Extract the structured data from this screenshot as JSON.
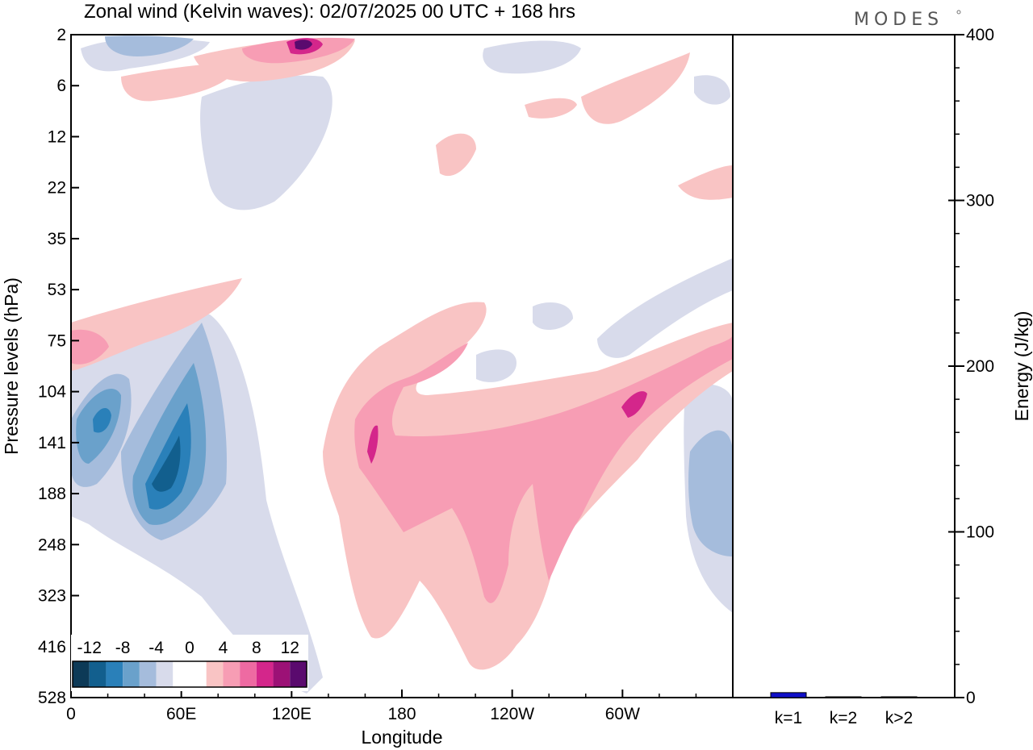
{
  "title": "Zonal wind (Kelvin waves):  02/07/2025  00 UTC  + 168 hrs",
  "brand": "MODES",
  "chart_data": [
    {
      "type": "heatmap",
      "title": "Zonal wind (Kelvin waves):  02/07/2025  00 UTC  + 168 hrs",
      "xlabel": "Longitude",
      "ylabel": "Pressure levels (hPa)",
      "x_tick_labels": [
        "0",
        "60E",
        "120E",
        "180",
        "120W",
        "60W"
      ],
      "x_tick_degrees": [
        0,
        60,
        120,
        180,
        240,
        300
      ],
      "xlim": [
        0,
        360
      ],
      "y_tick_labels": [
        "2",
        "6",
        "12",
        "22",
        "35",
        "53",
        "75",
        "104",
        "141",
        "188",
        "248",
        "323",
        "416",
        "528"
      ],
      "y_scale": "model levels (non-uniform)",
      "colorbar": {
        "labels": [
          "-12",
          "-8",
          "-4",
          "0",
          "4",
          "8",
          "12"
        ],
        "colors": [
          "#0d3a57",
          "#125f8e",
          "#2a80b9",
          "#6aa1cb",
          "#a5bcdc",
          "#d8dbeb",
          "#ffffff",
          "#ffffff",
          "#f9c4c4",
          "#f79db4",
          "#ee6aa2",
          "#d4268b",
          "#9c1176",
          "#5a0a6e"
        ]
      },
      "regions": [
        {
          "label": "easterly (negative) core",
          "value": -12,
          "lon": [
            30,
            55
          ],
          "level": "141-188"
        },
        {
          "label": "easterly (negative) core",
          "value": -10,
          "lon": [
            5,
            25
          ],
          "level": "104-141"
        },
        {
          "label": "westerly (positive) core",
          "value": 8,
          "lon": [
            165,
            170
          ],
          "level": "141"
        },
        {
          "label": "westerly (positive) core",
          "value": 8,
          "lon": [
            300,
            310
          ],
          "level": "104-141"
        },
        {
          "label": "westerly (positive) upper",
          "value": 12,
          "lon": [
            115,
            130
          ],
          "level": "2-6"
        }
      ]
    },
    {
      "type": "bar",
      "categories": [
        "k=1",
        "k=2",
        "k>2"
      ],
      "values": [
        3,
        0.3,
        0.5
      ],
      "ylabel": "Energy (J/kg)",
      "ylim": [
        0,
        400
      ],
      "y_ticks": [
        0,
        100,
        200,
        300,
        400
      ],
      "bar_color": "#1010c8"
    }
  ]
}
